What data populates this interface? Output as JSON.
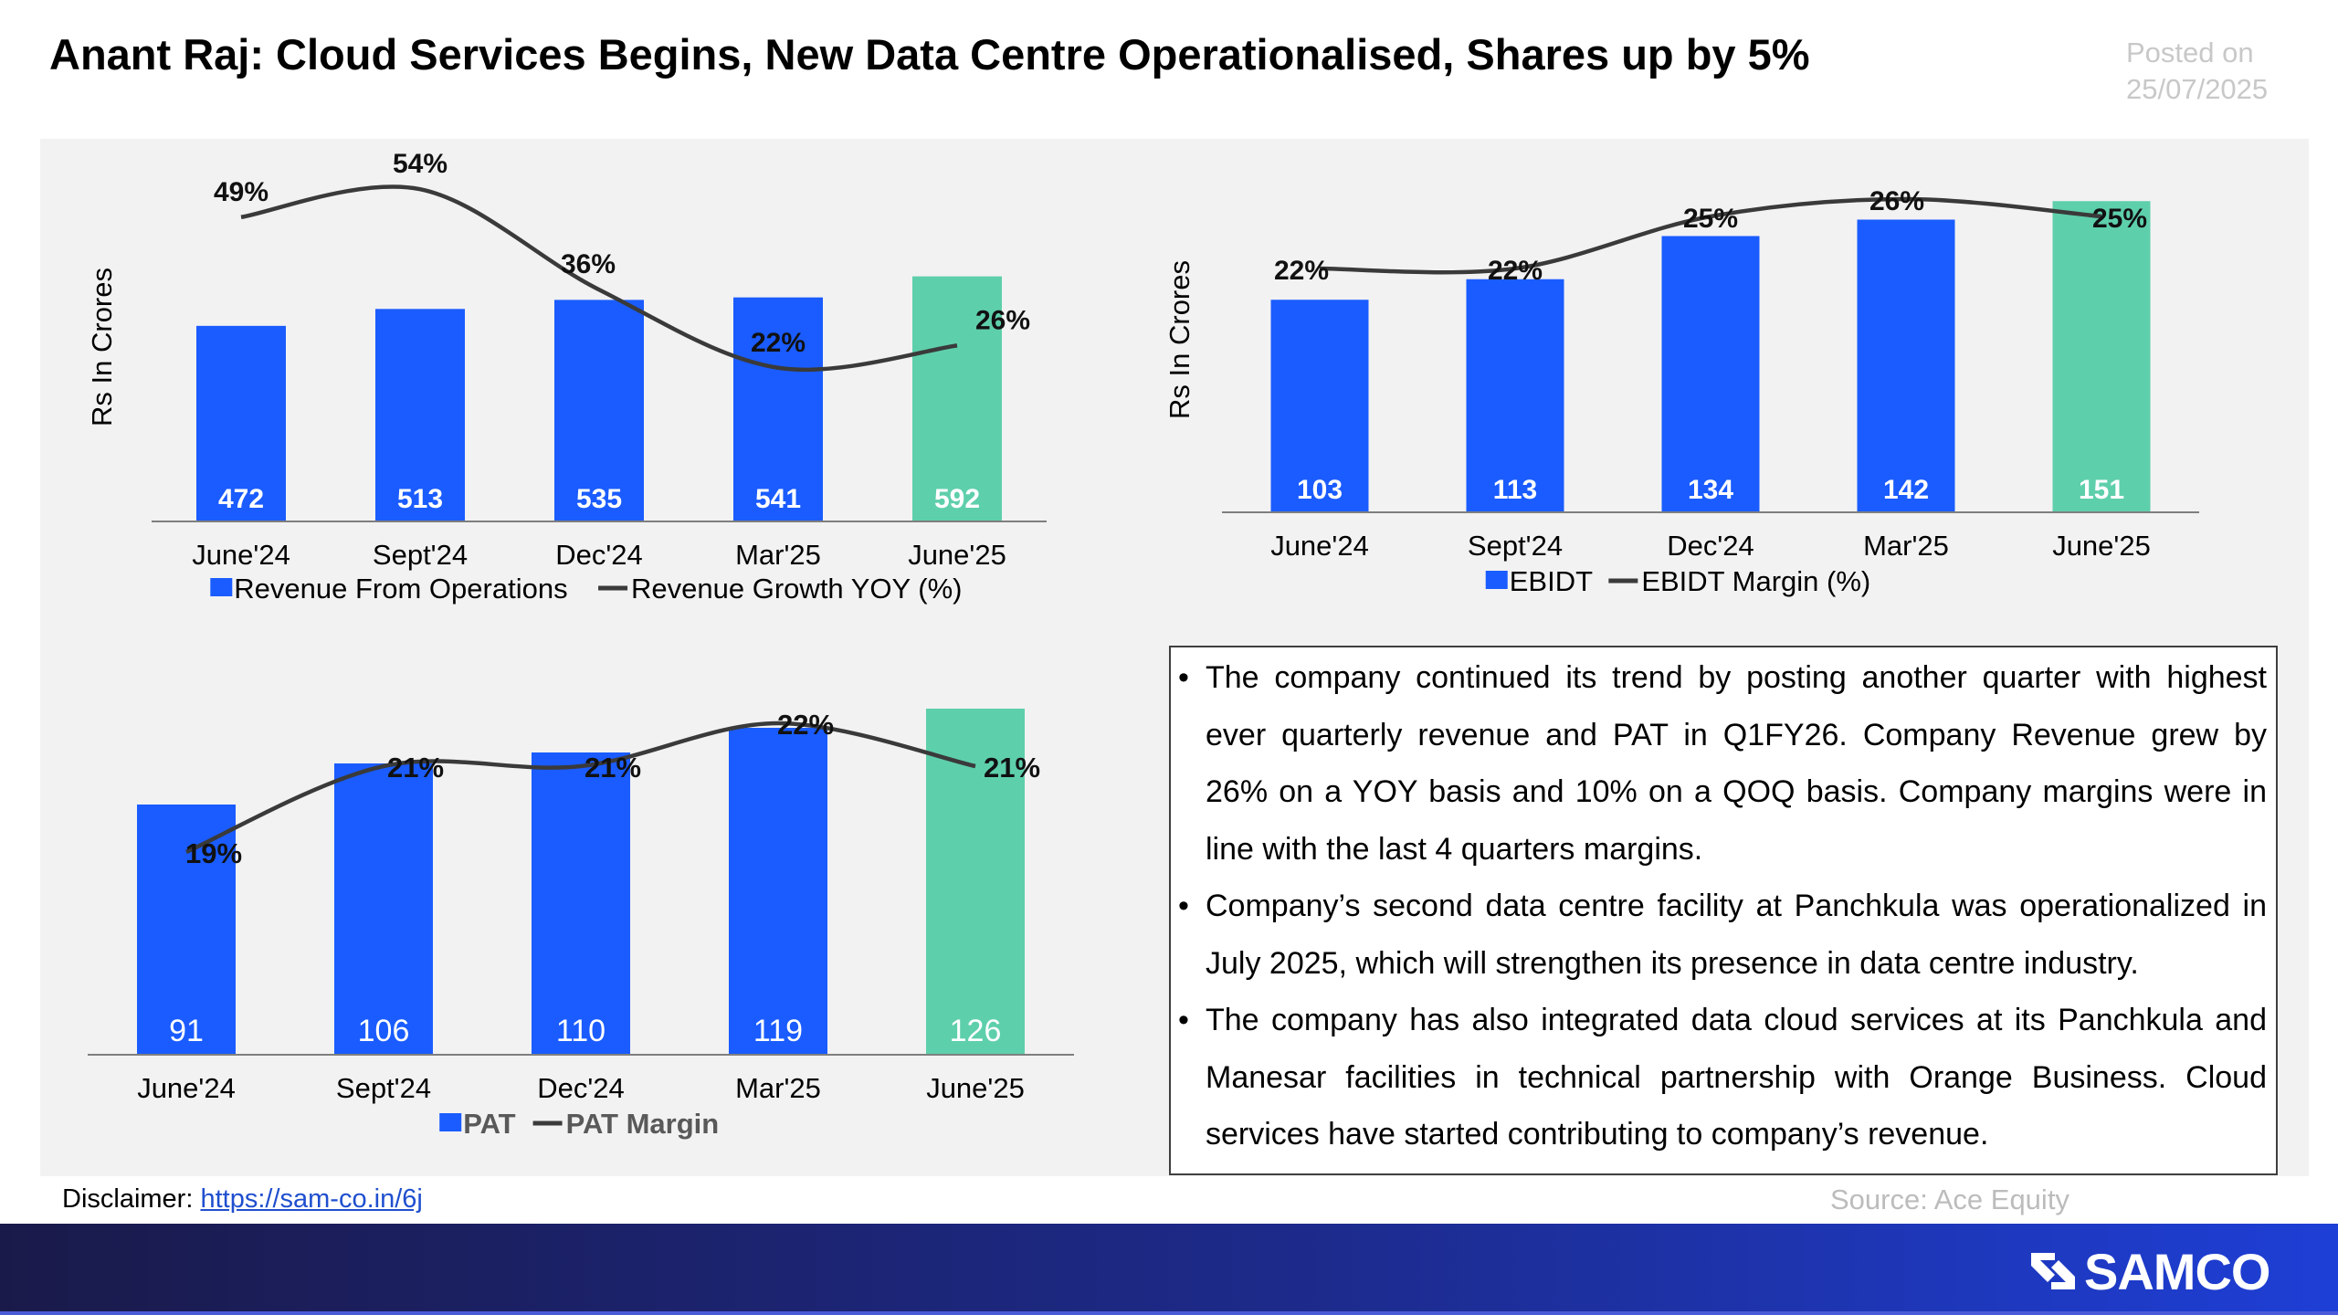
{
  "header": {
    "title": "Anant Raj: Cloud Services Begins, New Data Centre Operationalised, Shares up by 5%",
    "posted_label": "Posted on",
    "posted_date": "25/07/2025"
  },
  "colors": {
    "bar": "#1a5cff",
    "bar_highlight": "#5ecfab",
    "line": "#3a3a3a",
    "panel_bg": "#f2f2f2"
  },
  "chart_data": [
    {
      "type": "bar",
      "categories": [
        "June'24",
        "Sept'24",
        "Dec'24",
        "Mar'25",
        "June'25"
      ],
      "ylabel": "Rs In Crores",
      "series": [
        {
          "name": "Revenue From Operations",
          "type": "bar",
          "values": [
            472,
            513,
            535,
            541,
            592
          ],
          "labels": [
            "472",
            "513",
            "535",
            "541",
            "592"
          ]
        },
        {
          "name": "Revenue Growth YOY (%)",
          "type": "line",
          "values": [
            49,
            54,
            36,
            22,
            26
          ],
          "labels": [
            "49%",
            "54%",
            "36%",
            "22%",
            "26%"
          ]
        }
      ],
      "legend": "bottom"
    },
    {
      "type": "bar",
      "categories": [
        "June'24",
        "Sept'24",
        "Dec'24",
        "Mar'25",
        "June'25"
      ],
      "ylabel": "Rs In Crores",
      "series": [
        {
          "name": "EBIDT",
          "type": "bar",
          "values": [
            103,
            113,
            134,
            142,
            151
          ],
          "labels": [
            "103",
            "113",
            "134",
            "142",
            "151"
          ]
        },
        {
          "name": "EBIDT Margin (%)",
          "type": "line",
          "values": [
            22,
            22,
            25,
            26,
            25
          ],
          "labels": [
            "22%",
            "22%",
            "25%",
            "26%",
            "25%"
          ]
        }
      ],
      "legend": "bottom"
    },
    {
      "type": "bar",
      "categories": [
        "June'24",
        "Sept'24",
        "Dec'24",
        "Mar'25",
        "June'25"
      ],
      "series": [
        {
          "name": "PAT",
          "type": "bar",
          "values": [
            91,
            106,
            110,
            119,
            126
          ],
          "labels": [
            "91",
            "106",
            "110",
            "119",
            "126"
          ]
        },
        {
          "name": "PAT Margin",
          "type": "line",
          "values": [
            19,
            21,
            21,
            22,
            21
          ],
          "labels": [
            "19%",
            "21%",
            "21%",
            "22%",
            "21%"
          ]
        }
      ],
      "legend": "bottom"
    }
  ],
  "notes": [
    "The company continued its trend by posting another quarter with highest ever quarterly revenue and PAT in Q1FY26. Company Revenue grew by 26% on a YOY basis and 10% on a QOQ basis. Company margins were in line with the last 4 quarters margins.",
    " Company’s second data centre facility at Panchkula was operationalized in July 2025, which will strengthen its presence in data centre industry.",
    "The company has also integrated data cloud services at its Panchkula and Manesar facilities in technical partnership with Orange Business. Cloud services have started contributing to company’s revenue."
  ],
  "bullet": "•",
  "footer": {
    "disclaimer_label": "Disclaimer: ",
    "disclaimer_link": "https://sam-co.in/6j",
    "source": "Source: Ace Equity",
    "logo_text": "SAMCO"
  }
}
